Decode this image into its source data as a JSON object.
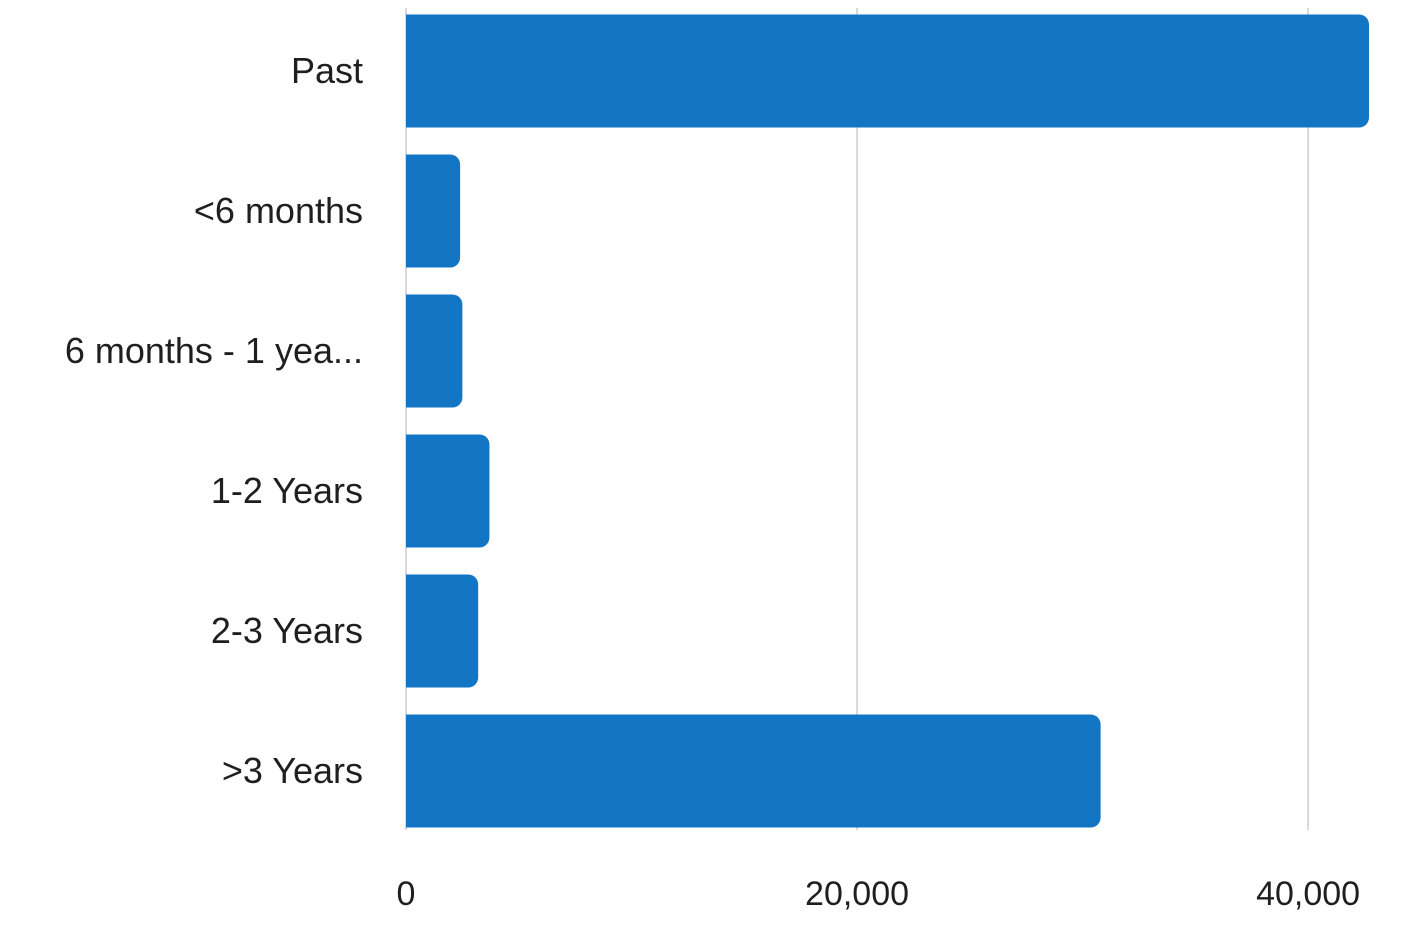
{
  "chart_data": {
    "type": "bar",
    "orientation": "horizontal",
    "categories": [
      "Past",
      "<6 months",
      "6 months - 1 yea...",
      "1-2 Years",
      "2-3 Years",
      ">3 Years"
    ],
    "values": [
      42700,
      2400,
      2500,
      3700,
      3200,
      30800
    ],
    "x_ticks": [
      "0",
      "20,000",
      "40,000"
    ],
    "x_tick_values": [
      0,
      20000,
      40000
    ],
    "xlim": [
      0,
      42700
    ],
    "grid": true,
    "bar_color": "#1376c4",
    "title": "",
    "xlabel": "",
    "ylabel": ""
  }
}
